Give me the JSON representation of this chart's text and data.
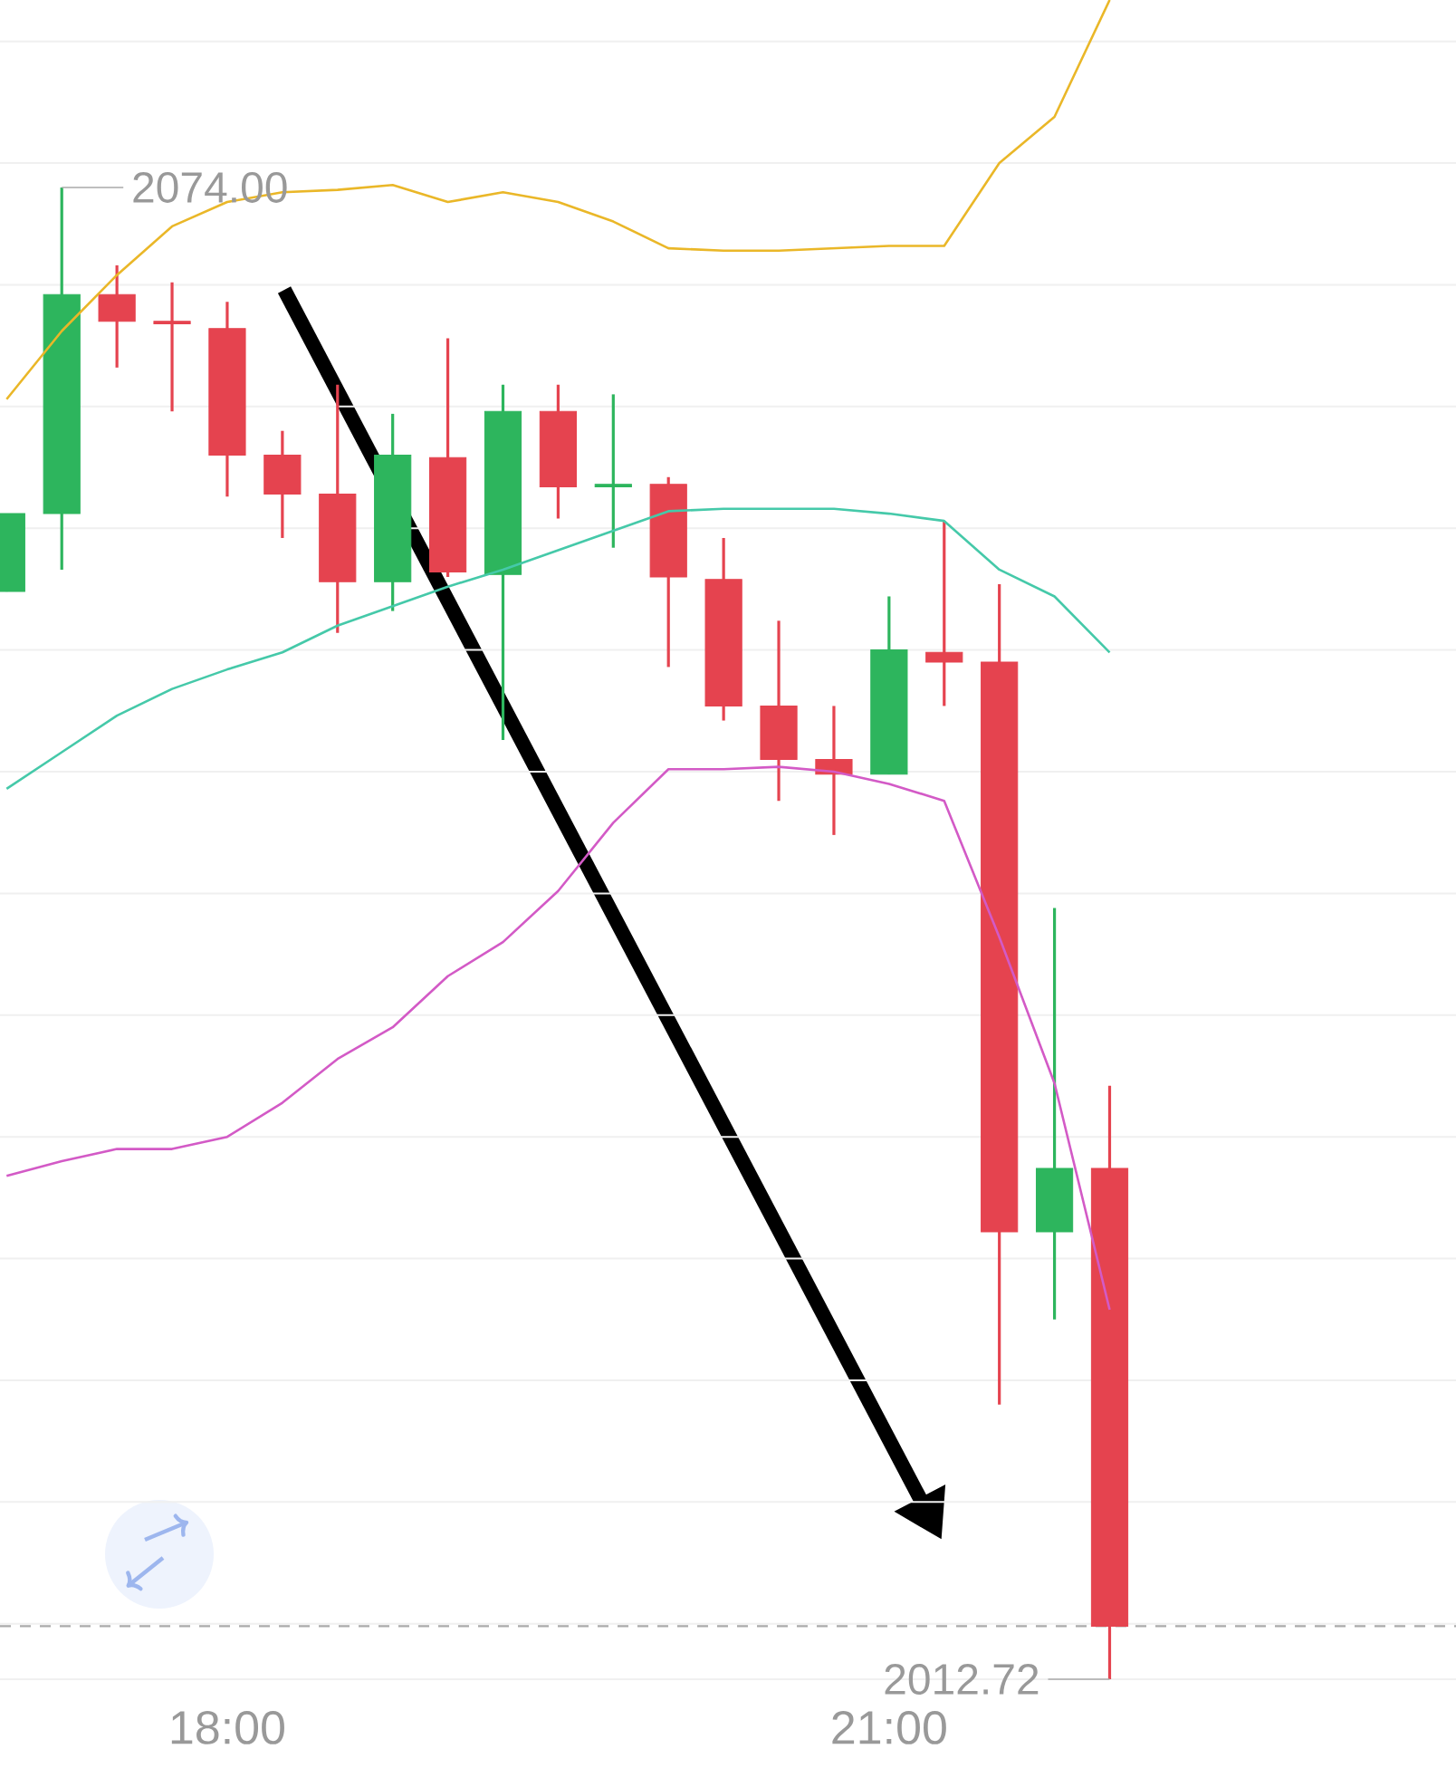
{
  "chart_data": {
    "type": "candlestick",
    "x": [
      17.0,
      17.25,
      17.5,
      17.75,
      18.0,
      18.25,
      18.5,
      18.75,
      19.0,
      19.25,
      19.5,
      19.75,
      20.0,
      20.25,
      20.5,
      20.75,
      21.0,
      21.25,
      21.5,
      21.75,
      22.0
    ],
    "ohlc": [
      [
        2057.4,
        2060.6,
        2057.4,
        2060.6
      ],
      [
        2060.6,
        2074.0,
        2058.3,
        2069.6
      ],
      [
        2069.6,
        2070.8,
        2066.6,
        2068.5
      ],
      [
        2068.5,
        2070.1,
        2064.8,
        2068.4
      ],
      [
        2068.2,
        2069.3,
        2061.3,
        2063.0
      ],
      [
        2063.0,
        2064.0,
        2059.6,
        2061.4
      ],
      [
        2061.4,
        2065.9,
        2055.7,
        2057.8
      ],
      [
        2057.8,
        2064.7,
        2056.6,
        2063.0
      ],
      [
        2062.9,
        2067.8,
        2058.0,
        2058.2
      ],
      [
        2058.1,
        2065.9,
        2051.3,
        2064.8
      ],
      [
        2064.8,
        2065.9,
        2060.4,
        2061.7
      ],
      [
        2061.7,
        2065.5,
        2059.2,
        2061.8
      ],
      [
        2061.8,
        2062.1,
        2054.3,
        2058.0
      ],
      [
        2057.9,
        2059.6,
        2052.1,
        2052.7
      ],
      [
        2052.7,
        2056.2,
        2048.8,
        2050.5
      ],
      [
        2050.5,
        2052.7,
        2047.4,
        2049.9
      ],
      [
        2049.9,
        2057.2,
        2049.9,
        2055.0
      ],
      [
        2054.9,
        2060.3,
        2052.7,
        2054.5
      ],
      [
        2054.5,
        2057.7,
        2024.0,
        2031.1
      ],
      [
        2031.1,
        2044.4,
        2027.5,
        2033.7
      ],
      [
        2033.7,
        2037.1,
        2012.72,
        2014.9
      ]
    ],
    "colors": [
      "#2db55d",
      "#2db55d",
      "#e5434f",
      "#e5434f",
      "#e5434f",
      "#e5434f",
      "#e5434f",
      "#2db55d",
      "#e5434f",
      "#2db55d",
      "#e5434f",
      "#2db55d",
      "#e5434f",
      "#e5434f",
      "#e5434f",
      "#e5434f",
      "#2db55d",
      "#e5434f",
      "#e5434f",
      "#2db55d",
      "#e5434f"
    ],
    "series": [
      {
        "type": "line",
        "color": "#eab728",
        "values": [
          2065.3,
          2068.1,
          2070.4,
          2072.4,
          2073.4,
          2073.8,
          2073.9,
          2074.1,
          2073.4,
          2073.8,
          2073.4,
          2072.6,
          2071.5,
          2071.4,
          2071.4,
          2071.5,
          2071.6,
          2071.6,
          2075.0,
          2076.9,
          2081.7
        ]
      },
      {
        "type": "line",
        "color": "#45c9a9",
        "values": [
          2049.3,
          2050.8,
          2052.3,
          2053.4,
          2054.2,
          2054.9,
          2056.0,
          2056.8,
          2057.6,
          2058.3,
          2059.1,
          2059.9,
          2060.7,
          2060.8,
          2060.8,
          2060.8,
          2060.6,
          2060.3,
          2058.3,
          2057.2,
          2054.9
        ]
      },
      {
        "type": "line",
        "color": "#d35ac6",
        "values": [
          2033.4,
          2034.0,
          2034.5,
          2034.5,
          2035.0,
          2036.4,
          2038.2,
          2039.5,
          2041.6,
          2043.0,
          2045.1,
          2047.9,
          2050.1,
          2050.1,
          2050.2,
          2050.0,
          2049.5,
          2048.8,
          2043.2,
          2037.2,
          2027.9
        ]
      }
    ],
    "annotations": [
      {
        "text": "2074.00",
        "x": 17.25,
        "y": 2074.0
      },
      {
        "text": "2012.72",
        "x": 22.0,
        "y": 2012.72
      }
    ],
    "ref_lines": [
      {
        "axis": "y",
        "value": 2014.9,
        "color": "#aaaaaa",
        "line_style": "dashed"
      }
    ],
    "xlim": [
      16.97,
      23.57
    ],
    "xticks": [
      {
        "value": 18,
        "label": "18:00"
      },
      {
        "value": 21,
        "label": "21:00"
      }
    ],
    "yticks": [
      {
        "value": 2015,
        "label": null
      },
      {
        "value": 2020,
        "label": null
      },
      {
        "value": 2025,
        "label": null
      },
      {
        "value": 2030,
        "label": null
      },
      {
        "value": 2035,
        "label": null
      },
      {
        "value": 2040,
        "label": null
      },
      {
        "value": 2045,
        "label": null
      },
      {
        "value": 2050,
        "label": null
      },
      {
        "value": 2055,
        "label": null
      },
      {
        "value": 2060,
        "label": null
      },
      {
        "value": 2065,
        "label": null
      },
      {
        "value": 2070,
        "label": null
      },
      {
        "value": 2075,
        "label": null
      },
      {
        "value": 2080,
        "label": null
      }
    ],
    "grid": "y",
    "tick_labels": "x"
  }
}
